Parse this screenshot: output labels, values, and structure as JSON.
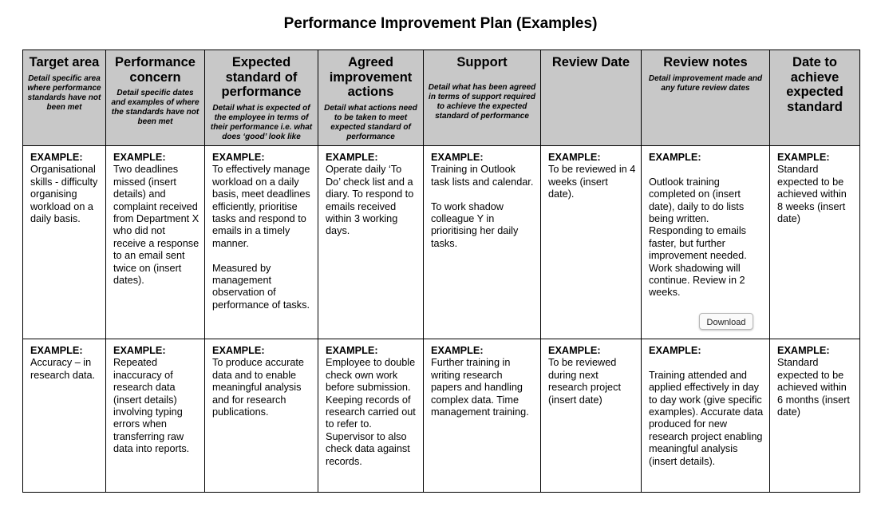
{
  "title": "Performance Improvement Plan (Examples)",
  "columns": [
    {
      "title": "Target area",
      "desc": "Detail specific area where performance standards have not been met"
    },
    {
      "title": "Performance concern",
      "desc": "Detail specific dates and examples of where the standards have not been met"
    },
    {
      "title": "Expected standard of performance",
      "desc": "Detail what is expected of the employee in terms of their performance i.e. what does ‘good’ look like"
    },
    {
      "title": "Agreed improvement actions",
      "desc": "Detail what actions need to be taken to meet expected standard of performance"
    },
    {
      "title": "Support",
      "desc": "Detail what has been agreed in terms of support required to achieve the expected standard of performance"
    },
    {
      "title": "Review Date",
      "desc": ""
    },
    {
      "title": "Review notes",
      "desc": "Detail improvement made and any future review dates"
    },
    {
      "title": "Date to achieve expected standard",
      "desc": ""
    }
  ],
  "example_label": "EXAMPLE:",
  "rows": [
    {
      "cells": [
        "Organisational skills - difficulty organising workload on a daily basis.",
        "Two deadlines missed (insert details) and complaint received from Department X who did not receive a response to an email sent twice on (insert dates).",
        "To effectively manage workload on a daily basis, meet deadlines efficiently, prioritise tasks and respond to emails in a timely manner.\n\nMeasured by management observation of performance of tasks.",
        "Operate daily ‘To Do’ check list and a diary. To respond to emails received within 3 working days.",
        "Training in Outlook task lists and calendar.\n\nTo work shadow colleague Y in prioritising her daily tasks.",
        "To be reviewed in 4 weeks (insert date).",
        "\nOutlook training completed on (insert date), daily to do lists being written. Responding to emails faster, but further improvement needed. Work shadowing will continue. Review in 2 weeks.",
        "Standard expected to be achieved within 8 weeks (insert date)"
      ]
    },
    {
      "cells": [
        "Accuracy – in research data.",
        "Repeated inaccuracy of research data (insert details) involving typing errors when transferring raw data into reports.",
        "To produce accurate data and to enable meaningful analysis and for research publications.",
        "Employee to double check own work before submission. Keeping records of research carried out to refer to. Supervisor to also check data against records.",
        "Further training in writing research papers and handling complex data. Time management training.",
        "To be reviewed during next research project (insert date)",
        "\nTraining attended and applied effectively in day to day work (give specific examples). Accurate data produced for new research project enabling meaningful analysis (insert details).",
        "Standard expected to be achieved within 6 months (insert date)"
      ]
    }
  ],
  "download_label": "Download"
}
